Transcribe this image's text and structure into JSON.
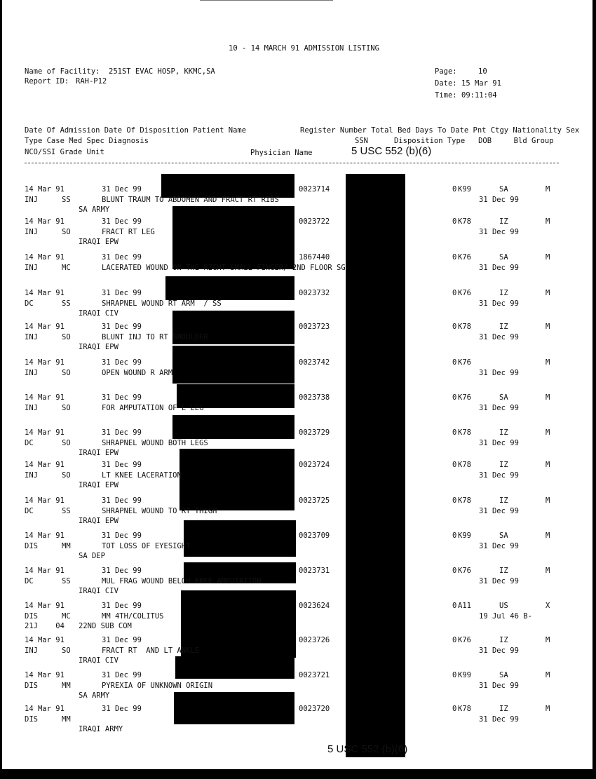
{
  "title": "10 - 14 MARCH 91 ADMISSION LISTING",
  "facility": {
    "label": "Name of Facility:",
    "value": "251ST EVAC HOSP, KKMC,SA"
  },
  "report_id": {
    "label": "Report ID:",
    "value": "RAH-P12"
  },
  "page": {
    "label": "Page:",
    "value": "10"
  },
  "date": {
    "label": "Date:",
    "value": "15 Mar 91"
  },
  "time": {
    "label": "Time:",
    "value": "09:11:04"
  },
  "headers": {
    "line1_left": "Date Of Admission Date Of Disposition Patient Name",
    "line1_right": "Register Number Total Bed Days To Date Pnt Ctgy Nationality Sex",
    "line2_left": "Type Case Med Spec Diagnosis",
    "line2_ssn": "SSN",
    "line2_right": "Disposition Type   DOB     Bld Group",
    "line3_left": "NCO/SSI Grade Unit",
    "line3_physician": "Physician Name"
  },
  "exemption_stamp": "5 USC 552 (b)(6)",
  "rows": [
    {
      "admit": "14 Mar 91",
      "dispo": "31 Dec 99",
      "reg": "0023714",
      "type": "INJ",
      "spec": "SS",
      "diag": "BLUNT TRAUM TO ABDOMEN AND FRACT RT RIBS",
      "grade": "",
      "unit": "SA ARMY",
      "days": "0",
      "ctgy": "K99",
      "nat": "SA",
      "sex": "M",
      "dob": "31 Dec 99"
    },
    {
      "admit": "14 Mar 91",
      "dispo": "31 Dec 99",
      "reg": "0023722",
      "type": "INJ",
      "spec": "SO",
      "diag": "FRACT RT LEG",
      "grade": "",
      "unit": "IRAQI EPW",
      "days": "0",
      "ctgy": "K78",
      "nat": "IZ",
      "sex": "M",
      "dob": "31 Dec 99"
    },
    {
      "admit": "14 Mar 91",
      "dispo": "31 Dec 99",
      "reg": "1867440",
      "type": "INJ",
      "spec": "MC",
      "diag": "LACERATED WOUND ON THE RIGHT SMALL FINGER/ 2ND FLOOR SG",
      "grade": "",
      "unit": "",
      "days": "0",
      "ctgy": "K76",
      "nat": "SA",
      "sex": "M",
      "dob": "31 Dec 99"
    },
    {
      "admit": "14 Mar 91",
      "dispo": "31 Dec 99",
      "reg": "0023732",
      "type": "DC",
      "spec": "SS",
      "diag": "SHRAPNEL WOUND RT ARM  / SS",
      "grade": "",
      "unit": "IRAQI CIV",
      "days": "0",
      "ctgy": "K76",
      "nat": "IZ",
      "sex": "M",
      "dob": "31 Dec 99"
    },
    {
      "admit": "14 Mar 91",
      "dispo": "31 Dec 99",
      "reg": "0023723",
      "type": "INJ",
      "spec": "SO",
      "diag": "BLUNT INJ TO RT SHOULDER",
      "grade": "",
      "unit": "IRAQI EPW",
      "days": "0",
      "ctgy": "K78",
      "nat": "IZ",
      "sex": "M",
      "dob": "31 Dec 99"
    },
    {
      "admit": "14 Mar 91",
      "dispo": "31 Dec 99",
      "reg": "0023742",
      "type": "INJ",
      "spec": "SO",
      "diag": "OPEN WOUND R ARM",
      "grade": "",
      "unit": "",
      "days": "0",
      "ctgy": "K76",
      "nat": "",
      "sex": "M",
      "dob": "31 Dec 99"
    },
    {
      "admit": "14 Mar 91",
      "dispo": "31 Dec 99",
      "reg": "0023738",
      "type": "INJ",
      "spec": "SO",
      "diag": "FOR AMPUTATION OF L LEG",
      "grade": "",
      "unit": "",
      "days": "0",
      "ctgy": "K76",
      "nat": "SA",
      "sex": "M",
      "dob": "31 Dec 99"
    },
    {
      "admit": "14 Mar 91",
      "dispo": "31 Dec 99",
      "reg": "0023729",
      "type": "DC",
      "spec": "SO",
      "diag": "SHRAPNEL WOUND BOTH LEGS",
      "grade": "",
      "unit": "IRAQI EPW",
      "days": "0",
      "ctgy": "K78",
      "nat": "IZ",
      "sex": "M",
      "dob": "31 Dec 99"
    },
    {
      "admit": "14 Mar 91",
      "dispo": "31 Dec 99",
      "reg": "0023724",
      "type": "INJ",
      "spec": "SO",
      "diag": "LT KNEE LACERATION",
      "grade": "",
      "unit": "IRAQI EPW",
      "days": "0",
      "ctgy": "K78",
      "nat": "IZ",
      "sex": "M",
      "dob": "31 Dec 99"
    },
    {
      "admit": "14 Mar 91",
      "dispo": "31 Dec 99",
      "reg": "0023725",
      "type": "DC",
      "spec": "SS",
      "diag": "SHRAPNEL WOUND TO RT THIGH",
      "grade": "",
      "unit": "IRAQI EPW",
      "days": "0",
      "ctgy": "K78",
      "nat": "IZ",
      "sex": "M",
      "dob": "31 Dec 99"
    },
    {
      "admit": "14 Mar 91",
      "dispo": "31 Dec 99",
      "reg": "0023709",
      "type": "DIS",
      "spec": "MM",
      "diag": "TOT LOSS OF EYESIGHT",
      "grade": "",
      "unit": "SA DEP",
      "days": "0",
      "ctgy": "K99",
      "nat": "SA",
      "sex": "M",
      "dob": "31 Dec 99"
    },
    {
      "admit": "14 Mar 91",
      "dispo": "31 Dec 99",
      "reg": "0023731",
      "type": "DC",
      "spec": "SS",
      "diag": "MUL FRAG WOUND BELOW KNEE AMPUTATION",
      "grade": "",
      "unit": "IRAQI CIV",
      "days": "0",
      "ctgy": "K76",
      "nat": "IZ",
      "sex": "M",
      "dob": "31 Dec 99"
    },
    {
      "admit": "14 Mar 91",
      "dispo": "31 Dec 99",
      "reg": "0023624",
      "type": "DIS",
      "spec": "MC",
      "diag": "MM 4TH/COLITUS",
      "grade": "21J    04",
      "unit": "22ND SUB COM",
      "days": "0",
      "ctgy": "A11",
      "nat": "US",
      "sex": "X",
      "dob": "19 Jul 46 B-"
    },
    {
      "admit": "14 Mar 91",
      "dispo": "31 Dec 99",
      "reg": "0023726",
      "type": "INJ",
      "spec": "SO",
      "diag": "FRACT RT  AND LT ANKLE",
      "grade": "",
      "unit": "IRAQI CIV",
      "days": "0",
      "ctgy": "K76",
      "nat": "IZ",
      "sex": "M",
      "dob": "31 Dec 99"
    },
    {
      "admit": "14 Mar 91",
      "dispo": "31 Dec 99",
      "reg": "0023721",
      "type": "DIS",
      "spec": "MM",
      "diag": "PYREXIA OF UNKNOWN ORIGIN",
      "grade": "",
      "unit": "SA ARMY",
      "days": "0",
      "ctgy": "K99",
      "nat": "SA",
      "sex": "M",
      "dob": "31 Dec 99"
    },
    {
      "admit": "14 Mar 91",
      "dispo": "31 Dec 99",
      "reg": "0023720",
      "type": "DIS",
      "spec": "MM",
      "diag": "",
      "grade": "",
      "unit": "IRAQI ARMY",
      "days": "0",
      "ctgy": "K78",
      "nat": "IZ",
      "sex": "M",
      "dob": "31 Dec 99"
    }
  ]
}
